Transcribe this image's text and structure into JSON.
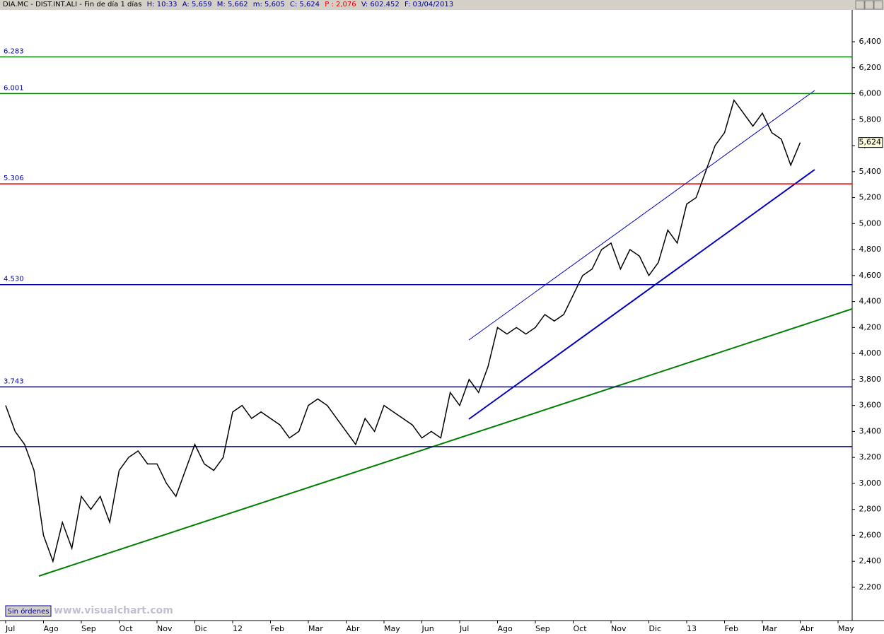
{
  "header": {
    "items": [
      "DIA.MC - DIST.INT.ALI - Fin de día 1 días",
      "H: 10:33",
      "A: 5,659",
      "M: 5,662",
      "m: 5,605",
      "C: 5,624",
      "P : 2,076",
      "V: 602.452",
      "F: 03/04/2013"
    ]
  },
  "footer": {
    "status": "Sin órdenes",
    "watermark": "www.visualchart.com"
  },
  "chart_data": {
    "type": "line",
    "months": [
      "Jul",
      "Ago",
      "Sep",
      "Oct",
      "Nov",
      "Dic",
      "12",
      "Feb",
      "Mar",
      "Abr",
      "May",
      "Jun",
      "Jul",
      "Ago",
      "Sep",
      "Oct",
      "Nov",
      "Dic",
      "13",
      "Feb",
      "Mar",
      "Abr",
      "May"
    ],
    "series": [
      {
        "color": "#000000",
        "values": [
          3.6,
          3.4,
          3.3,
          3.1,
          2.6,
          2.4,
          2.7,
          2.5,
          2.9,
          2.8,
          2.9,
          2.7,
          3.1,
          3.2,
          3.25,
          3.15,
          3.15,
          3.0,
          2.9,
          3.1,
          3.3,
          3.15,
          3.1,
          3.2,
          3.55,
          3.6,
          3.5,
          3.55,
          3.5,
          3.45,
          3.35,
          3.4,
          3.6,
          3.65,
          3.6,
          3.5,
          3.4,
          3.3,
          3.5,
          3.4,
          3.6,
          3.55,
          3.5,
          3.45,
          3.35,
          3.4,
          3.35,
          3.7,
          3.6,
          3.8,
          3.7,
          3.9,
          4.2,
          4.15,
          4.2,
          4.15,
          4.2,
          4.3,
          4.25,
          4.3,
          4.45,
          4.6,
          4.65,
          4.8,
          4.85,
          4.65,
          4.8,
          4.75,
          4.6,
          4.7,
          4.95,
          4.85,
          5.15,
          5.2,
          5.4,
          5.6,
          5.7,
          5.95,
          5.85,
          5.75,
          5.85,
          5.7,
          5.65,
          5.45,
          5.624
        ]
      }
    ],
    "ylim": [
      1.944,
      6.645
    ],
    "yticks": [
      {
        "value": 2.2,
        "label": "2,200"
      },
      {
        "value": 2.4,
        "label": "2,400"
      },
      {
        "value": 2.6,
        "label": "2,600"
      },
      {
        "value": 2.8,
        "label": "2,800"
      },
      {
        "value": 3.0,
        "label": "3,000"
      },
      {
        "value": 3.2,
        "label": "3,200"
      },
      {
        "value": 3.4,
        "label": "3,400"
      },
      {
        "value": 3.6,
        "label": "3,600"
      },
      {
        "value": 3.8,
        "label": "3,800"
      },
      {
        "value": 4.0,
        "label": "4,000"
      },
      {
        "value": 4.2,
        "label": "4,200"
      },
      {
        "value": 4.4,
        "label": "4,400"
      },
      {
        "value": 4.6,
        "label": "4,600"
      },
      {
        "value": 4.8,
        "label": "4,800"
      },
      {
        "value": 5.0,
        "label": "5,000"
      },
      {
        "value": 5.2,
        "label": "5,200"
      },
      {
        "value": 5.4,
        "label": "5,400"
      },
      {
        "value": 5.6,
        "label": "5,600"
      },
      {
        "value": 5.8,
        "label": "5,800"
      },
      {
        "value": 6.0,
        "label": "6,000"
      },
      {
        "value": 6.2,
        "label": "6,200"
      },
      {
        "value": 6.4,
        "label": "6,400"
      }
    ],
    "levels": [
      {
        "value": 6.283,
        "label": "6.283",
        "color": "#008000"
      },
      {
        "value": 6.001,
        "label": "6.001",
        "color": "#008000"
      },
      {
        "value": 5.306,
        "label": "5.306",
        "color": "#e00000"
      },
      {
        "value": 4.53,
        "label": "4.530",
        "color": "#0000a0"
      },
      {
        "value": 3.743,
        "label": "3.743",
        "color": "#0000a0"
      },
      {
        "value": 3.283,
        "color": "#0000a0"
      }
    ],
    "last": {
      "value": 5.624,
      "label": "5,624"
    }
  }
}
